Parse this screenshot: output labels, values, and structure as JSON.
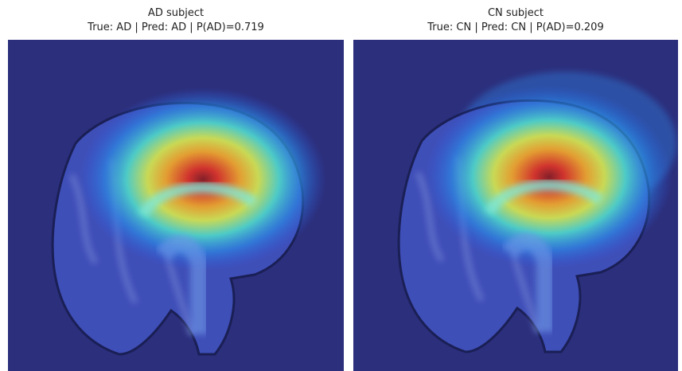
{
  "panels": [
    {
      "title": "AD subject",
      "subtitle": "True: AD | Pred: AD | P(AD)=0.719"
    },
    {
      "title": "CN subject",
      "subtitle": "True: CN | Pred: CN | P(AD)=0.209"
    }
  ]
}
